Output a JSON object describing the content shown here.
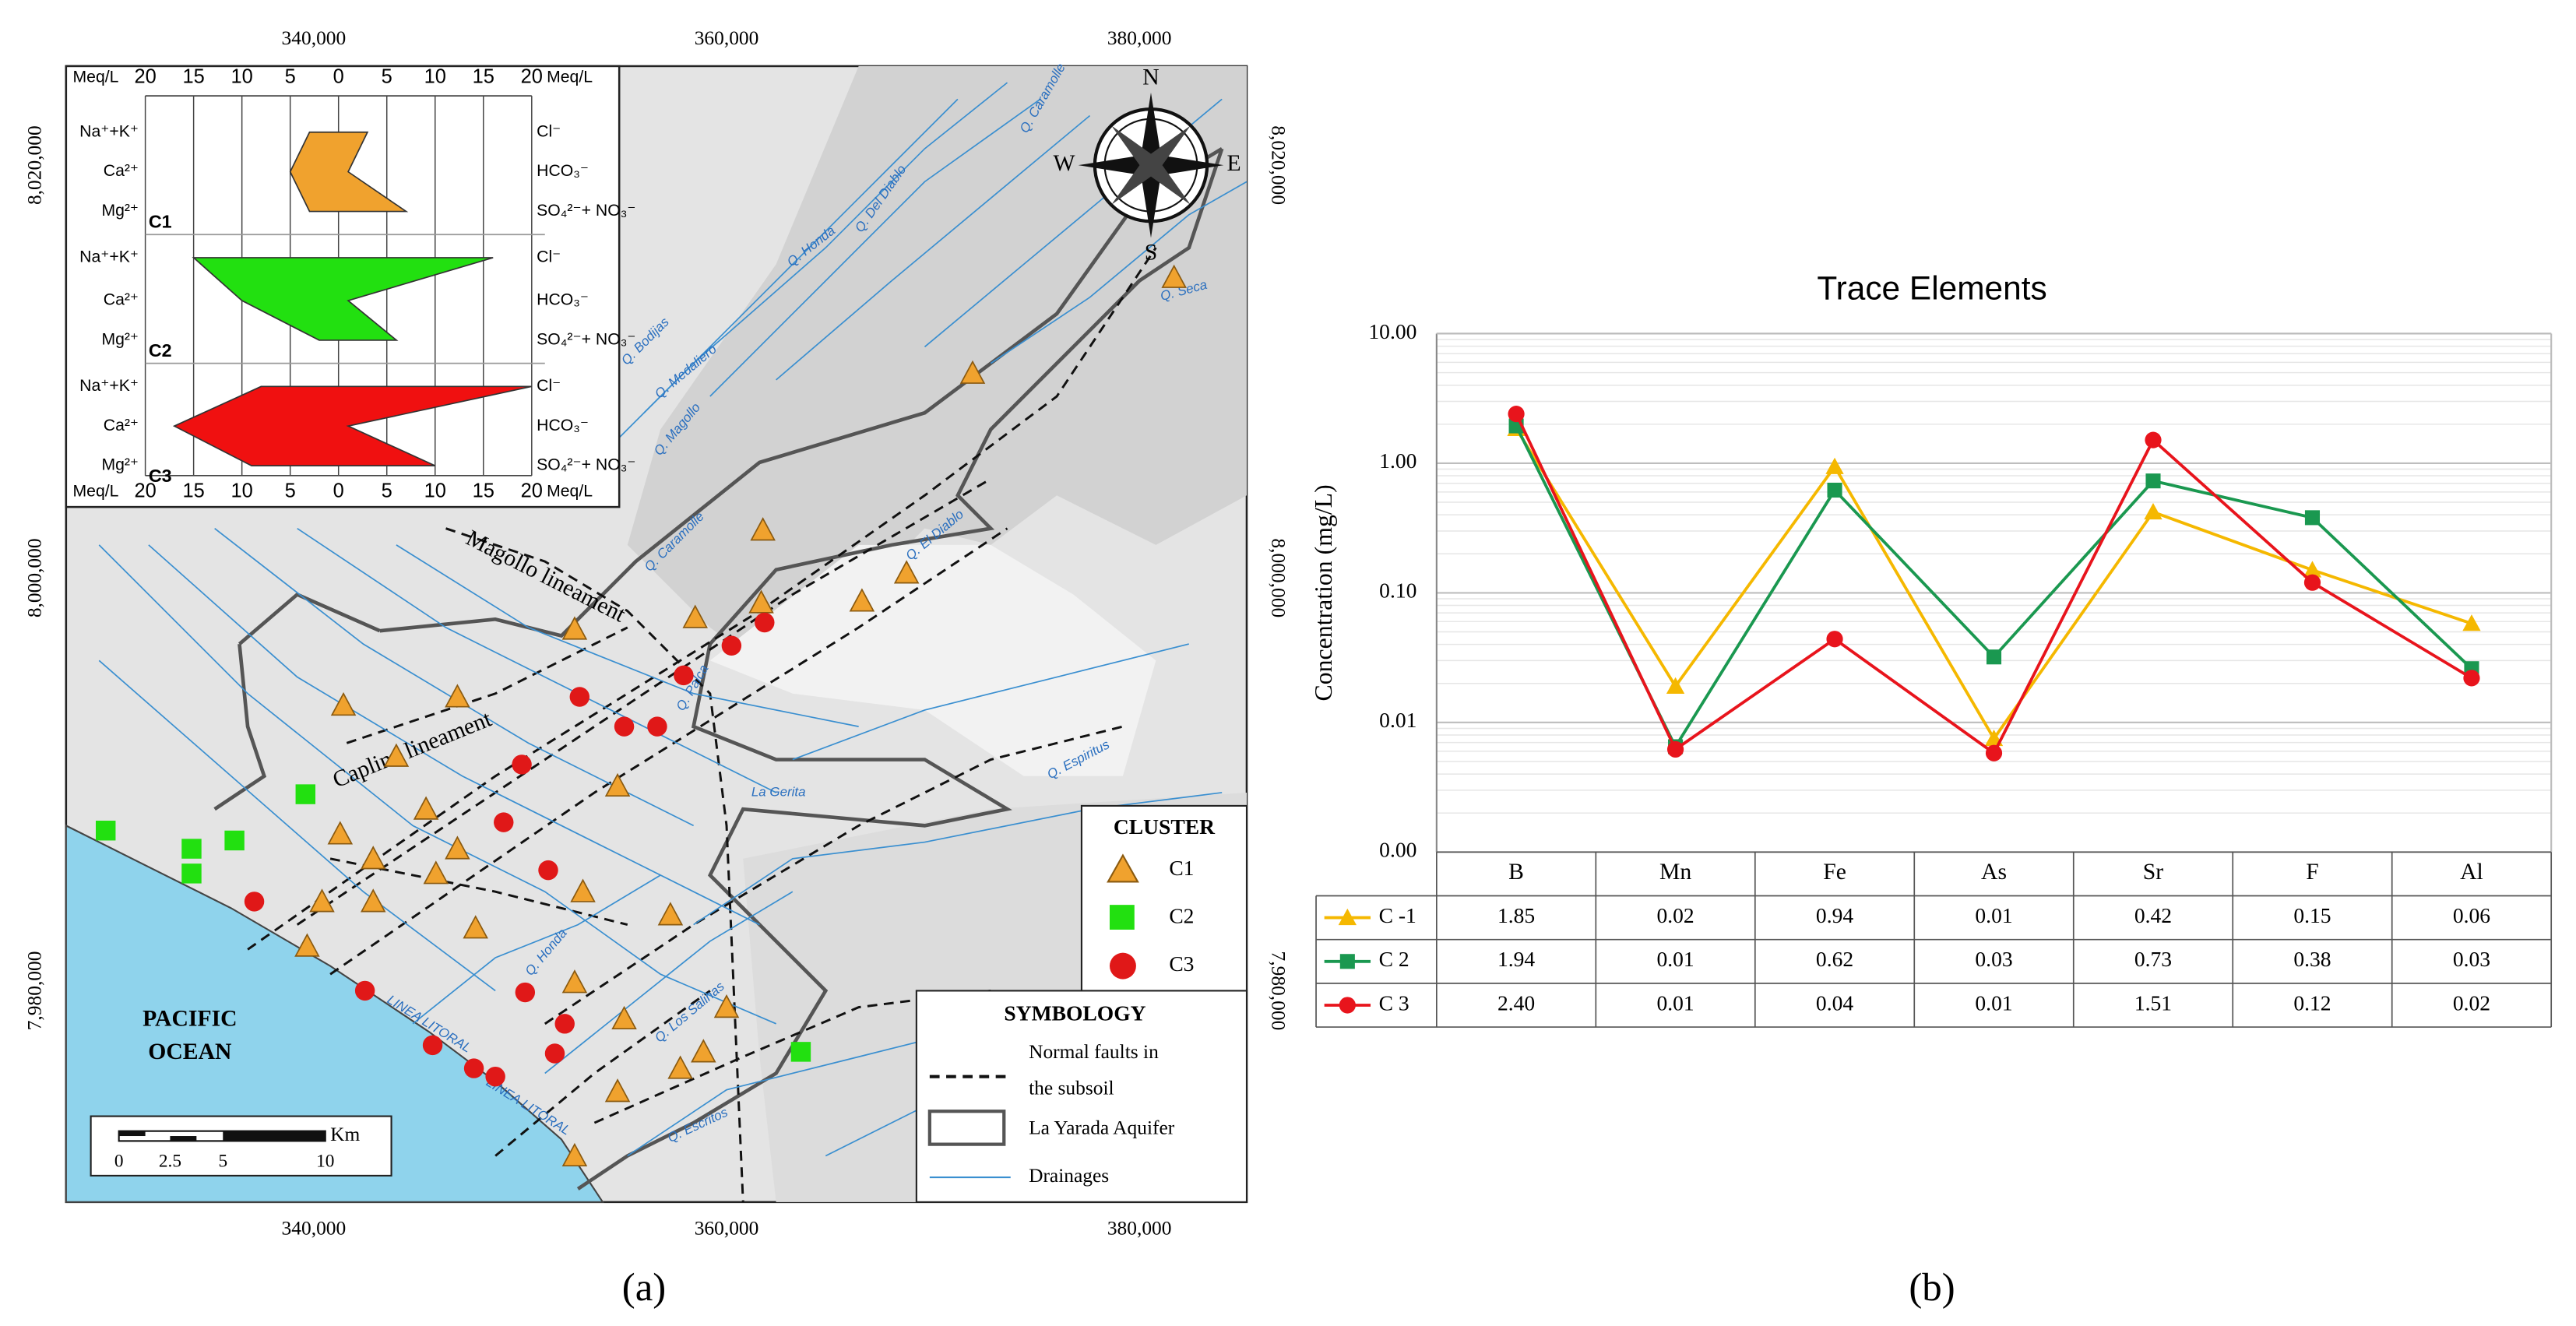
{
  "panel_a": {
    "label": "(a)",
    "easting_ticks": [
      "340,000",
      "360,000",
      "380,000"
    ],
    "northing_ticks": [
      "8,020,000",
      "8,000,000",
      "7,980,000"
    ],
    "stiff_diagram": {
      "unit": "Meq/L",
      "xlim": [
        0,
        20
      ],
      "xticks": [
        20,
        15,
        10,
        5,
        0,
        5,
        10,
        15,
        20
      ],
      "left_ions": [
        "Na⁺+K⁺",
        "Ca²⁺",
        "Mg²⁺"
      ],
      "right_ions": [
        "Cl⁻",
        "HCO₃⁻",
        "SO₄²⁻+ NO₃⁻"
      ],
      "series": [
        {
          "name": "C1",
          "color": "#f0a22e",
          "left": [
            3,
            5,
            3
          ],
          "right": [
            3,
            1,
            7
          ]
        },
        {
          "name": "C2",
          "color": "#22e010",
          "left": [
            15,
            10,
            2
          ],
          "right": [
            16,
            1,
            6
          ]
        },
        {
          "name": "C3",
          "color": "#f01010",
          "left": [
            8,
            17,
            9
          ],
          "right": [
            20,
            1,
            10
          ]
        }
      ]
    },
    "compass": {
      "north": "N",
      "south": "S",
      "east": "E",
      "west": "W"
    },
    "lineaments": [
      "Magollo lineament",
      "Caplina lineament"
    ],
    "ocean": [
      "PACIFIC",
      "OCEAN"
    ],
    "drainage_names": [
      "Q. Honda",
      "Q. Caramolle",
      "Q. Del Diablo",
      "Q. Bodijas",
      "Q. Medaliero",
      "Q. Magollo",
      "Q. Seca",
      "Q. Caramolle",
      "Q. El Diablo",
      "Q. Espiritus",
      "Q. Escritos",
      "Q. Los Salinas",
      "Q. Honda",
      "La Gerita",
      "Q. Palca",
      "LINEA LITORAL",
      "LINEA LITORAL"
    ],
    "cluster_legend": {
      "title": "CLUSTER",
      "items": [
        "C1",
        "C2",
        "C3"
      ]
    },
    "symbology": {
      "title": "SYMBOLOGY",
      "faults": [
        "Normal faults in",
        "the subsoil"
      ],
      "aquifer": "La Yarada Aquifer",
      "drainages": "Drainages"
    },
    "scale_bar": {
      "unit": "Km",
      "labels": [
        "0",
        "2.5",
        "5",
        "10"
      ]
    }
  },
  "chart_data": {
    "type": "line",
    "label": "(b)",
    "title": "Trace Elements",
    "y_label": "Concentration (mg/L)",
    "log_scale": true,
    "grid": true,
    "minor_grid": true,
    "categories": [
      "B",
      "Mn",
      "Fe",
      "As",
      "Sr",
      "F",
      "Al"
    ],
    "ylim": [
      0.001,
      10
    ],
    "yticks": [
      {
        "value": 0.001,
        "label": "0.00"
      },
      {
        "value": 0.01,
        "label": "0.01"
      },
      {
        "value": 0.1,
        "label": "0.10"
      },
      {
        "value": 1,
        "label": "1.00"
      },
      {
        "value": 10,
        "label": "10.00"
      }
    ],
    "series": [
      {
        "name": "C -1",
        "color": "#f5b800",
        "marker": "triangle",
        "values": [
          1.85,
          0.019,
          0.94,
          0.0075,
          0.42,
          0.15,
          0.058
        ],
        "value_labels": [
          "1.85",
          "0.02",
          "0.94",
          "0.01",
          "0.42",
          "0.15",
          "0.06"
        ]
      },
      {
        "name": "C 2",
        "color": "#1a9850",
        "marker": "square",
        "values": [
          1.94,
          0.0065,
          0.62,
          0.032,
          0.73,
          0.38,
          0.026
        ],
        "value_labels": [
          "1.94",
          "0.01",
          "0.62",
          "0.03",
          "0.73",
          "0.38",
          "0.03"
        ]
      },
      {
        "name": "C 3",
        "color": "#e8141c",
        "marker": "circle",
        "values": [
          2.4,
          0.0062,
          0.044,
          0.0058,
          1.51,
          0.12,
          0.022
        ],
        "value_labels": [
          "2.40",
          "0.01",
          "0.04",
          "0.01",
          "1.51",
          "0.12",
          "0.02"
        ]
      }
    ]
  }
}
